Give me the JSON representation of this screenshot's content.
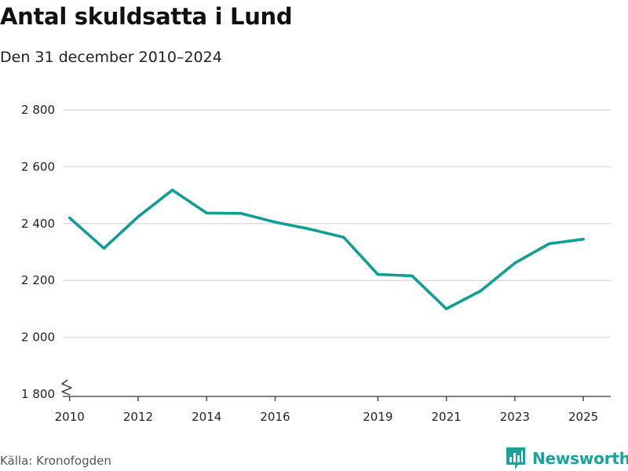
{
  "header": {
    "title": "Antal skuldsatta i Lund",
    "subtitle": "Den 31 december 2010–2024"
  },
  "footer": {
    "source": "Källa: Kronofogden",
    "brand": "Newsworthy",
    "brand_icon": "bar-chart-logo-icon"
  },
  "colors": {
    "line": "#119e95",
    "grid": "#dddddd",
    "axis": "#333333"
  },
  "chart_data": {
    "type": "line",
    "title": "Antal skuldsatta i Lund",
    "subtitle": "Den 31 december 2010–2024",
    "xlabel": "",
    "ylabel": "",
    "xlim": [
      2009.8,
      2025.8
    ],
    "ylim": [
      1800,
      2800
    ],
    "y_ticks": [
      1800,
      2000,
      2200,
      2400,
      2600,
      2800
    ],
    "y_tick_labels": [
      "1 800",
      "2 000",
      "2 200",
      "2 400",
      "2 600",
      "2 800"
    ],
    "x_ticks": [
      2010,
      2012,
      2014,
      2016,
      2019,
      2021,
      2023,
      2025
    ],
    "x_tick_labels": [
      "2010",
      "2012",
      "2014",
      "2016",
      "2019",
      "2021",
      "2023",
      "2025"
    ],
    "axis_break": true,
    "grid": true,
    "series": [
      {
        "name": "Antal skuldsatta",
        "x": [
          2010,
          2011,
          2012,
          2013,
          2014,
          2015,
          2016,
          2017,
          2018,
          2019,
          2020,
          2021,
          2022,
          2023,
          2024,
          2025
        ],
        "values": [
          2420,
          2313,
          2424,
          2518,
          2437,
          2436,
          2405,
          2381,
          2352,
          2221,
          2216,
          2100,
          2163,
          2261,
          2329,
          2345
        ]
      }
    ]
  }
}
